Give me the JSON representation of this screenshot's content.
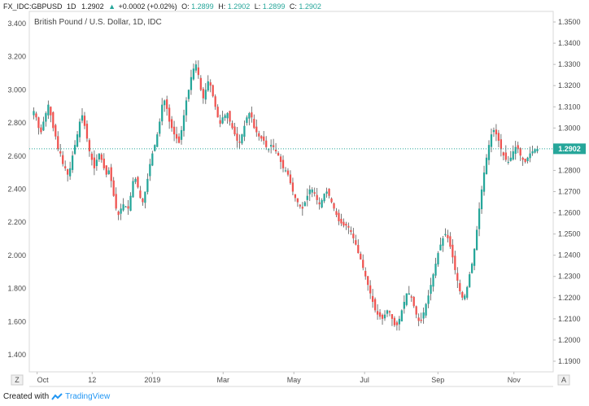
{
  "header": {
    "symbol": "FX_IDC:GBPUSD",
    "interval": "1D",
    "last": "1.2902",
    "change": "+0.0002 (+0.02%)",
    "o_label": "O:",
    "o_value": "1.2899",
    "h_label": "H:",
    "h_value": "1.2902",
    "l_label": "L:",
    "l_value": "1.2899",
    "c_label": "C:",
    "c_value": "1.2902"
  },
  "left_axis": {
    "ticks": [
      "3.400",
      "3.200",
      "3.000",
      "2.800",
      "2.600",
      "2.400",
      "2.200",
      "2.000",
      "1.800",
      "1.600",
      "1.400"
    ],
    "values": [
      3.4,
      3.2,
      3.0,
      2.8,
      2.6,
      2.4,
      2.2,
      2.0,
      1.8,
      1.6,
      1.4
    ]
  },
  "chart_data": {
    "type": "candlestick",
    "title": "British Pound / U.S. Dollar, 1D, IDC",
    "x_tick_labels": [
      "Oct",
      "12",
      "2019",
      "Mar",
      "May",
      "Jul",
      "Sep",
      "Nov"
    ],
    "y_ticks": [
      "1.3500",
      "1.3400",
      "1.3300",
      "1.3200",
      "1.3100",
      "1.3000",
      "1.2900",
      "1.2800",
      "1.2700",
      "1.2600",
      "1.2500",
      "1.2400",
      "1.2300",
      "1.2200",
      "1.2100",
      "1.2000",
      "1.1900"
    ],
    "y_tick_values": [
      1.35,
      1.34,
      1.33,
      1.32,
      1.31,
      1.3,
      1.29,
      1.28,
      1.27,
      1.26,
      1.25,
      1.24,
      1.23,
      1.22,
      1.21,
      1.2,
      1.19
    ],
    "ylim": [
      1.185,
      1.355
    ],
    "last_price": 1.2902,
    "last_price_label": "1.2902",
    "up_color": "#26a69a",
    "down_color": "#ef5350",
    "close_path": [
      1.308,
      1.305,
      1.3,
      1.298,
      1.303,
      1.307,
      1.311,
      1.306,
      1.3,
      1.296,
      1.29,
      1.288,
      1.283,
      1.281,
      1.278,
      1.281,
      1.287,
      1.292,
      1.297,
      1.303,
      1.306,
      1.301,
      1.295,
      1.289,
      1.285,
      1.281,
      1.285,
      1.288,
      1.285,
      1.281,
      1.278,
      1.28,
      1.275,
      1.268,
      1.262,
      1.259,
      1.262,
      1.264,
      1.263,
      1.262,
      1.268,
      1.275,
      1.276,
      1.272,
      1.267,
      1.265,
      1.27,
      1.276,
      1.283,
      1.288,
      1.292,
      1.297,
      1.303,
      1.311,
      1.313,
      1.309,
      1.303,
      1.3,
      1.297,
      1.295,
      1.293,
      1.299,
      1.306,
      1.313,
      1.318,
      1.324,
      1.328,
      1.33,
      1.325,
      1.318,
      1.314,
      1.318,
      1.322,
      1.32,
      1.315,
      1.31,
      1.305,
      1.302,
      1.305,
      1.306,
      1.307,
      1.303,
      1.3,
      1.297,
      1.294,
      1.293,
      1.297,
      1.301,
      1.305,
      1.307,
      1.305,
      1.3,
      1.298,
      1.296,
      1.295,
      1.294,
      1.291,
      1.29,
      1.292,
      1.291,
      1.289,
      1.287,
      1.284,
      1.281,
      1.28,
      1.278,
      1.274,
      1.27,
      1.267,
      1.265,
      1.263,
      1.262,
      1.265,
      1.268,
      1.271,
      1.271,
      1.269,
      1.266,
      1.264,
      1.266,
      1.269,
      1.27,
      1.268,
      1.265,
      1.262,
      1.259,
      1.256,
      1.255,
      1.254,
      1.254,
      1.253,
      1.251,
      1.248,
      1.245,
      1.241,
      1.238,
      1.234,
      1.23,
      1.226,
      1.222,
      1.218,
      1.214,
      1.212,
      1.211,
      1.21,
      1.212,
      1.214,
      1.213,
      1.21,
      1.207,
      1.207,
      1.21,
      1.214,
      1.218,
      1.222,
      1.222,
      1.22,
      1.216,
      1.212,
      1.209,
      1.209,
      1.213,
      1.217,
      1.221,
      1.226,
      1.231,
      1.236,
      1.241,
      1.245,
      1.248,
      1.25,
      1.248,
      1.244,
      1.239,
      1.233,
      1.228,
      1.223,
      1.22,
      1.221,
      1.225,
      1.231,
      1.236,
      1.243,
      1.252,
      1.262,
      1.271,
      1.279,
      1.286,
      1.292,
      1.297,
      1.299,
      1.297,
      1.294,
      1.29,
      1.287,
      1.285,
      1.284,
      1.286,
      1.289,
      1.291,
      1.29,
      1.287,
      1.285,
      1.284,
      1.286,
      1.288,
      1.289,
      1.29,
      1.2902
    ]
  },
  "time_axis": {
    "left_button": "Z",
    "right_button": "A"
  },
  "footer": {
    "created_with": "Created with",
    "brand": "TradingView"
  }
}
